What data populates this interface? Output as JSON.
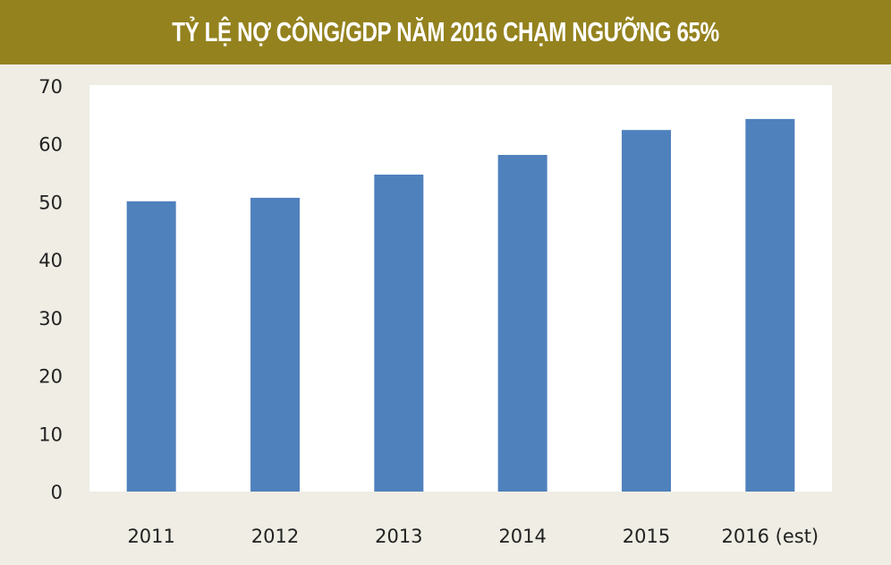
{
  "chart_data": {
    "type": "bar",
    "title": "TỶ LỆ NỢ CÔNG/GDP NĂM 2016 CHẠM NGƯỠNG 65%",
    "categories": [
      "2011",
      "2012",
      "2013",
      "2014",
      "2015",
      "2016 (est)"
    ],
    "values": [
      50.1,
      50.7,
      54.7,
      58.1,
      62.4,
      64.3
    ],
    "xlabel": "",
    "ylabel": "",
    "ylim": [
      0,
      70
    ],
    "yticks": [
      "0",
      "10",
      "20",
      "30",
      "40",
      "50",
      "60",
      "70"
    ],
    "grid": false,
    "bar_color": "#4f81bd",
    "header_color": "#94821f"
  }
}
